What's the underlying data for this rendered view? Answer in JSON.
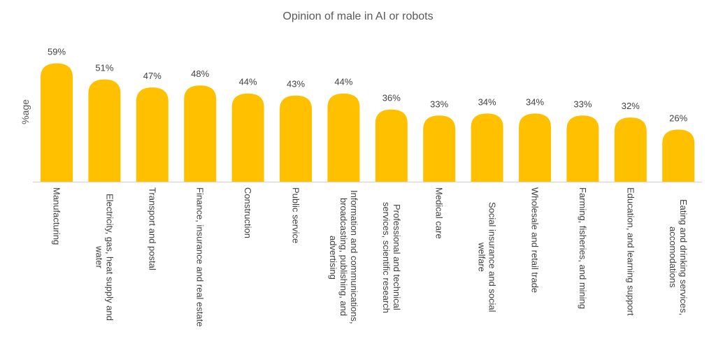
{
  "chart_data": {
    "type": "bar",
    "title": "Opinion of male in AI or robots",
    "ylabel": "%age",
    "xlabel": "",
    "categories": [
      "Manufacturing",
      "Electricity, gas, heat supply and water",
      "Transport and postal",
      "Finance, insurance and real estate",
      "Construction",
      "Public service",
      "Information and communications, broadcasting, publishing, and advertising",
      "Professional and technical services, scientific research",
      "Medical care",
      "Social insurance and social welfare",
      "Wholesale and retail trade",
      "Farming, fisheries, and mining",
      "Education, and learning support",
      "Eating and drinking services, accomodations"
    ],
    "values": [
      59,
      51,
      47,
      48,
      44,
      43,
      44,
      36,
      33,
      34,
      34,
      33,
      32,
      26
    ],
    "value_labels": [
      "59%",
      "51%",
      "47%",
      "48%",
      "44%",
      "43%",
      "44%",
      "36%",
      "33%",
      "34%",
      "34%",
      "33%",
      "32%",
      "26%"
    ],
    "ylim": [
      0,
      100
    ],
    "grid": false,
    "legend": "none",
    "bar_color": "#FFC000",
    "bar_shape": "rounded-top"
  }
}
